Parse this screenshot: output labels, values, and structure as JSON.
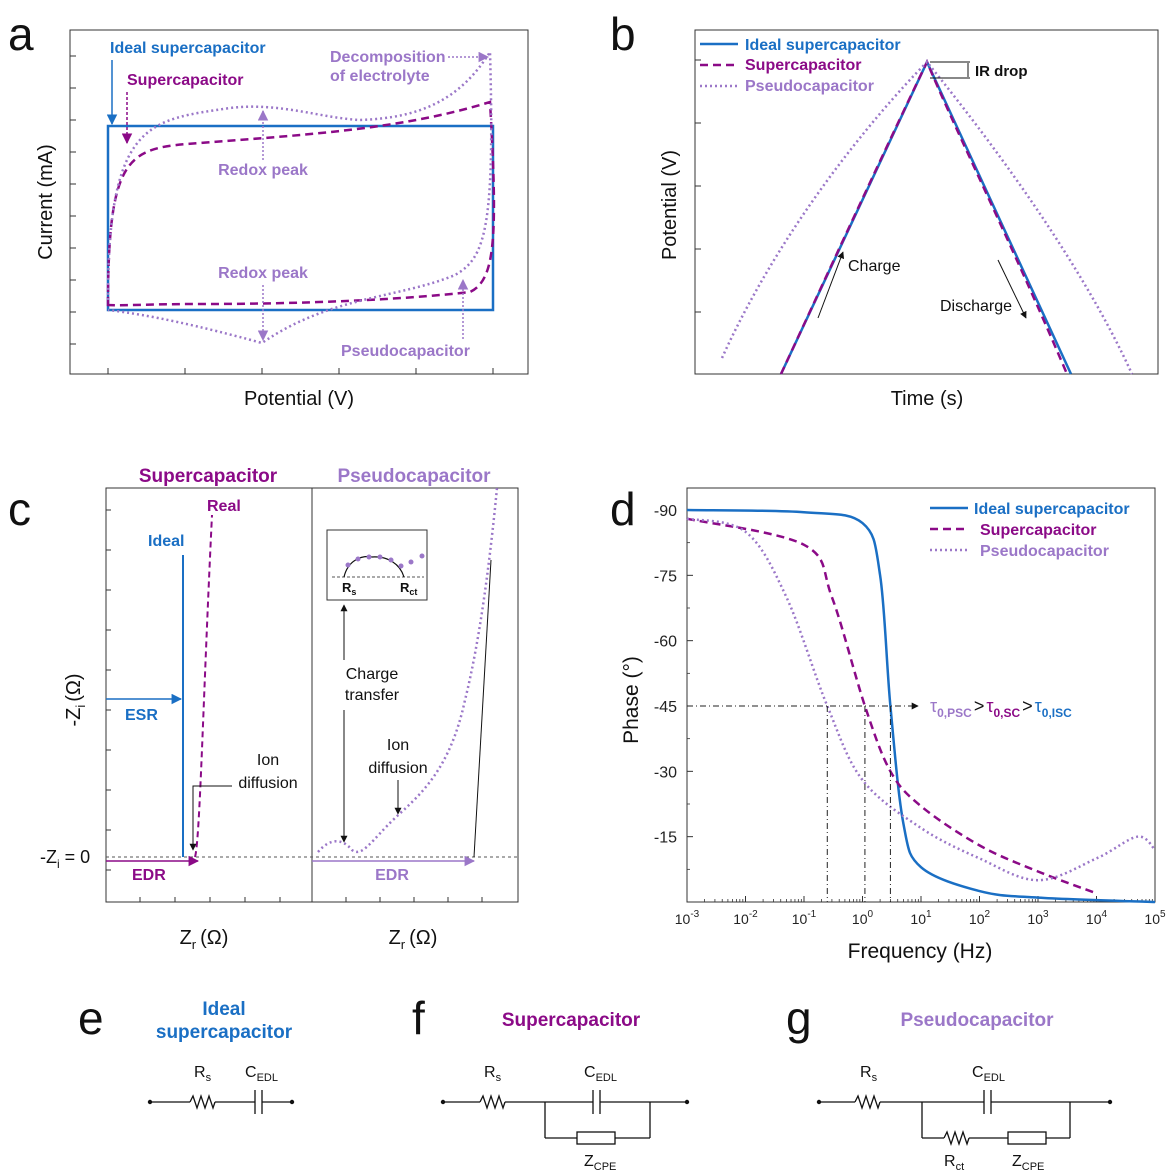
{
  "colors": {
    "ideal": "#1a6fc4",
    "supercapacitor": "#8b0a87",
    "pseudocapacitor": "#9b77c8",
    "dashdot": "#222222"
  },
  "panels": {
    "a": {
      "label": "a",
      "xlabel": "Potential (V)",
      "ylabel": "Current (mA)",
      "labels": {
        "ideal": "Ideal supercapacitor",
        "sc": "Supercapacitor",
        "decomp1": "Decomposition",
        "decomp2": "of electrolyte",
        "redox_top": "Redox peak",
        "redox_bottom": "Redox peak",
        "psc": "Pseudocapacitor"
      }
    },
    "b": {
      "label": "b",
      "xlabel": "Time (s)",
      "ylabel": "Potential (V)",
      "legend": [
        "Ideal supercapacitor",
        "Supercapacitor",
        "Pseudocapacitor"
      ],
      "ir_drop": "IR drop",
      "charge": "Charge",
      "discharge": "Discharge"
    },
    "c": {
      "label": "c",
      "title_sc": "Supercapacitor",
      "title_psc": "Pseudocapacitor",
      "ylabel_main": "-Z",
      "ylabel_sub": "i",
      "ylabel_unit": "(Ω)",
      "xlabel_main": "Z",
      "xlabel_sub": "r",
      "xlabel_unit": "(Ω)",
      "zero_label_main": "-Z",
      "zero_label_sub": "i",
      "zero_label_rest": " = 0",
      "real": "Real",
      "ideal": "Ideal",
      "esr": "ESR",
      "edr": "EDR",
      "ion1": "Ion",
      "ion2": "diffusion",
      "charge1": "Charge",
      "charge2": "transfer",
      "inset_rs_main": "R",
      "inset_rs_sub": "s",
      "inset_rct_main": "R",
      "inset_rct_sub": "ct"
    },
    "d": {
      "label": "d",
      "xlabel": "Frequency (Hz)",
      "ylabel": "Phase (°)",
      "legend": [
        "Ideal supercapacitor",
        "Supercapacitor",
        "Pseudocapacitor"
      ],
      "tau": {
        "t": "τ",
        "psc_sub": "0,PSC",
        "gt": ">",
        "sc_sub": "0,SC",
        "isc_sub": "0,ISC"
      }
    },
    "e": {
      "label": "e",
      "title1": "Ideal",
      "title2": "supercapacitor",
      "r_main": "R",
      "r_sub": "s",
      "c_main": "C",
      "c_sub": "EDL"
    },
    "f": {
      "label": "f",
      "title": "Supercapacitor",
      "r_main": "R",
      "r_sub": "s",
      "c_main": "C",
      "c_sub": "EDL",
      "z_main": "Z",
      "z_sub": "CPE"
    },
    "g": {
      "label": "g",
      "title": "Pseudocapacitor",
      "r_main": "R",
      "r_sub": "s",
      "c_main": "C",
      "c_sub": "EDL",
      "rct_main": "R",
      "rct_sub": "ct",
      "z_main": "Z",
      "z_sub": "CPE"
    }
  },
  "chart_data": [
    {
      "panel": "a",
      "type": "line",
      "xlabel": "Potential (V)",
      "ylabel": "Current (mA)",
      "series": [
        {
          "name": "Ideal supercapacitor"
        },
        {
          "name": "Supercapacitor"
        },
        {
          "name": "Pseudocapacitor"
        }
      ]
    },
    {
      "panel": "b",
      "type": "line",
      "xlabel": "Time (s)",
      "ylabel": "Potential (V)",
      "series": [
        {
          "name": "Ideal supercapacitor"
        },
        {
          "name": "Supercapacitor"
        },
        {
          "name": "Pseudocapacitor"
        }
      ]
    },
    {
      "panel": "c",
      "type": "line",
      "xlabel": "Zr (Ω)",
      "ylabel": "-Zi (Ω)"
    },
    {
      "panel": "d",
      "type": "line",
      "xlabel": "Frequency (Hz)",
      "ylabel": "Phase (°)",
      "x_scale": "log",
      "x_ticks": [
        "10^-3",
        "10^-2",
        "10^-1",
        "10^0",
        "10^1",
        "10^2",
        "10^3",
        "10^4",
        "10^5"
      ],
      "y_ticks": [
        -90,
        -75,
        -60,
        -45,
        -30,
        -15
      ],
      "series": [
        {
          "name": "Ideal supercapacitor",
          "x": [
            0.001,
            0.1,
            1,
            2,
            3,
            5,
            10,
            100,
            1000,
            100000
          ],
          "y": [
            -90,
            -89.5,
            -87,
            -75,
            -45,
            -18,
            -8,
            -2.5,
            -1,
            0
          ]
        },
        {
          "name": "Supercapacitor",
          "x": [
            0.001,
            0.1,
            0.3,
            1.1,
            3,
            10,
            100,
            1000,
            10000
          ],
          "y": [
            -88,
            -82,
            -70,
            -45,
            -30,
            -22,
            -13,
            -7,
            -2
          ]
        },
        {
          "name": "Pseudocapacitor",
          "x": [
            0.001,
            0.01,
            0.05,
            0.25,
            1,
            10,
            100,
            1000,
            10000,
            50000,
            100000
          ],
          "y": [
            -88,
            -85,
            -70,
            -45,
            -28,
            -17,
            -10,
            -5,
            -10,
            -15,
            -12
          ]
        }
      ],
      "annotations": [
        {
          "series": "Pseudocapacitor",
          "x": 0.25,
          "y": -45
        },
        {
          "series": "Supercapacitor",
          "x": 1.1,
          "y": -45
        },
        {
          "series": "Ideal supercapacitor",
          "x": 3,
          "y": -45
        }
      ]
    }
  ]
}
